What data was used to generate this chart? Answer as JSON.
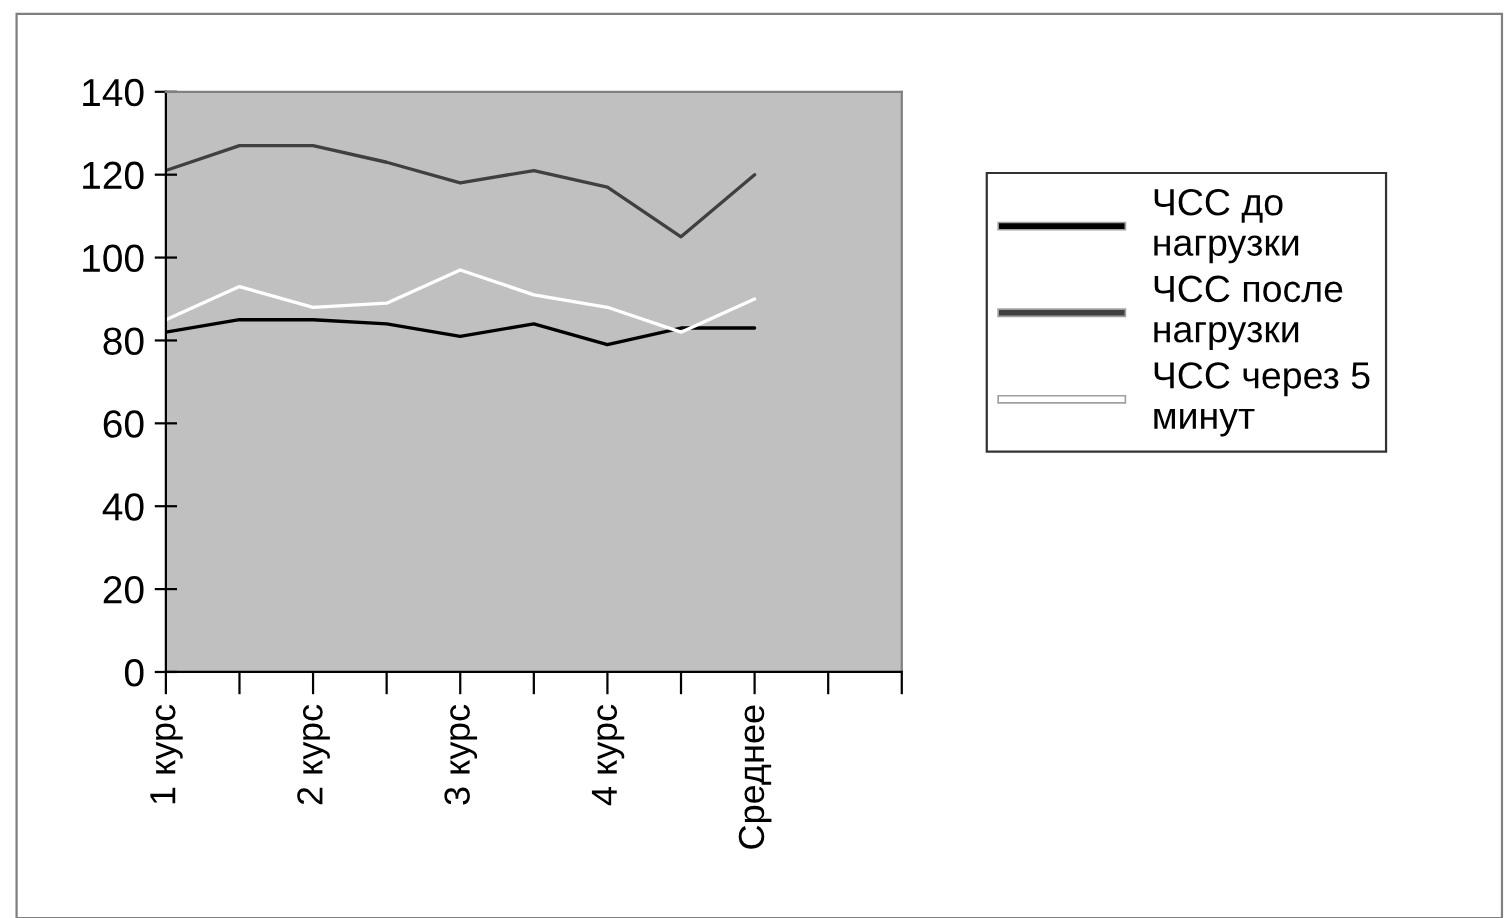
{
  "chart_data": {
    "type": "line",
    "categories": [
      "1 курс",
      null,
      "2 курс",
      null,
      "3 курс",
      null,
      "4 курс",
      null,
      "Среднее",
      null
    ],
    "series": [
      {
        "name": "ЧСС до\nнагрузки",
        "color": "#000000",
        "values": [
          82,
          85,
          85,
          84,
          81,
          84,
          79,
          83,
          83,
          null
        ]
      },
      {
        "name": "ЧСС после\nнагрузки",
        "color": "#404040",
        "values": [
          121,
          127,
          127,
          123,
          118,
          121,
          117,
          105,
          120,
          null
        ]
      },
      {
        "name": "ЧСС через 5\nминут",
        "color": "#ffffff",
        "values": [
          85,
          93,
          88,
          89,
          97,
          91,
          88,
          82,
          90,
          null
        ]
      }
    ],
    "ylim": [
      0,
      140
    ],
    "yticks": [
      0,
      20,
      40,
      60,
      80,
      100,
      120,
      140
    ],
    "grid": false,
    "legend": "right",
    "marker": "none",
    "line_style": "solid"
  }
}
